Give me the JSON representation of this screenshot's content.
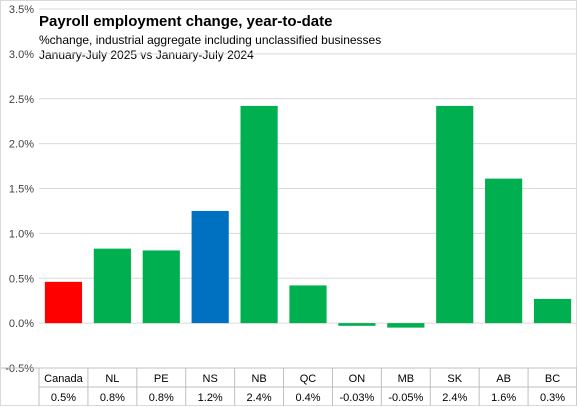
{
  "chart_data": {
    "type": "bar",
    "title": "Payroll employment change, year-to-date",
    "subtitle_lines": [
      "%change, industrial aggregate including unclassified businesses",
      "January-July 2025 vs January-July 2024"
    ],
    "xlabel": "",
    "ylabel": "",
    "ylim": [
      -0.5,
      3.5
    ],
    "yticks": [
      -0.5,
      0.0,
      0.5,
      1.0,
      1.5,
      2.0,
      2.5,
      3.0,
      3.5
    ],
    "ytick_labels": [
      "-0.5%",
      "0.0%",
      "0.5%",
      "1.0%",
      "1.5%",
      "2.0%",
      "2.5%",
      "3.0%",
      "3.5%"
    ],
    "grid": true,
    "categories": [
      "Canada",
      "NL",
      "PE",
      "NS",
      "NB",
      "QC",
      "ON",
      "MB",
      "SK",
      "AB",
      "BC"
    ],
    "values": [
      0.46,
      0.83,
      0.81,
      1.25,
      2.42,
      0.42,
      -0.03,
      -0.05,
      2.42,
      1.61,
      0.27
    ],
    "value_labels": [
      "0.5%",
      "0.8%",
      "0.8%",
      "1.2%",
      "2.4%",
      "0.4%",
      "-0.03%",
      "-0.05%",
      "2.4%",
      "1.6%",
      "0.3%"
    ],
    "bar_colors": [
      "#ff0000",
      "#00b050",
      "#00b050",
      "#0070c0",
      "#00b050",
      "#00b050",
      "#00b050",
      "#00b050",
      "#00b050",
      "#00b050",
      "#00b050"
    ],
    "colors": {
      "grid": "#d9d9d9",
      "table_line": "#bfbfbf"
    }
  }
}
